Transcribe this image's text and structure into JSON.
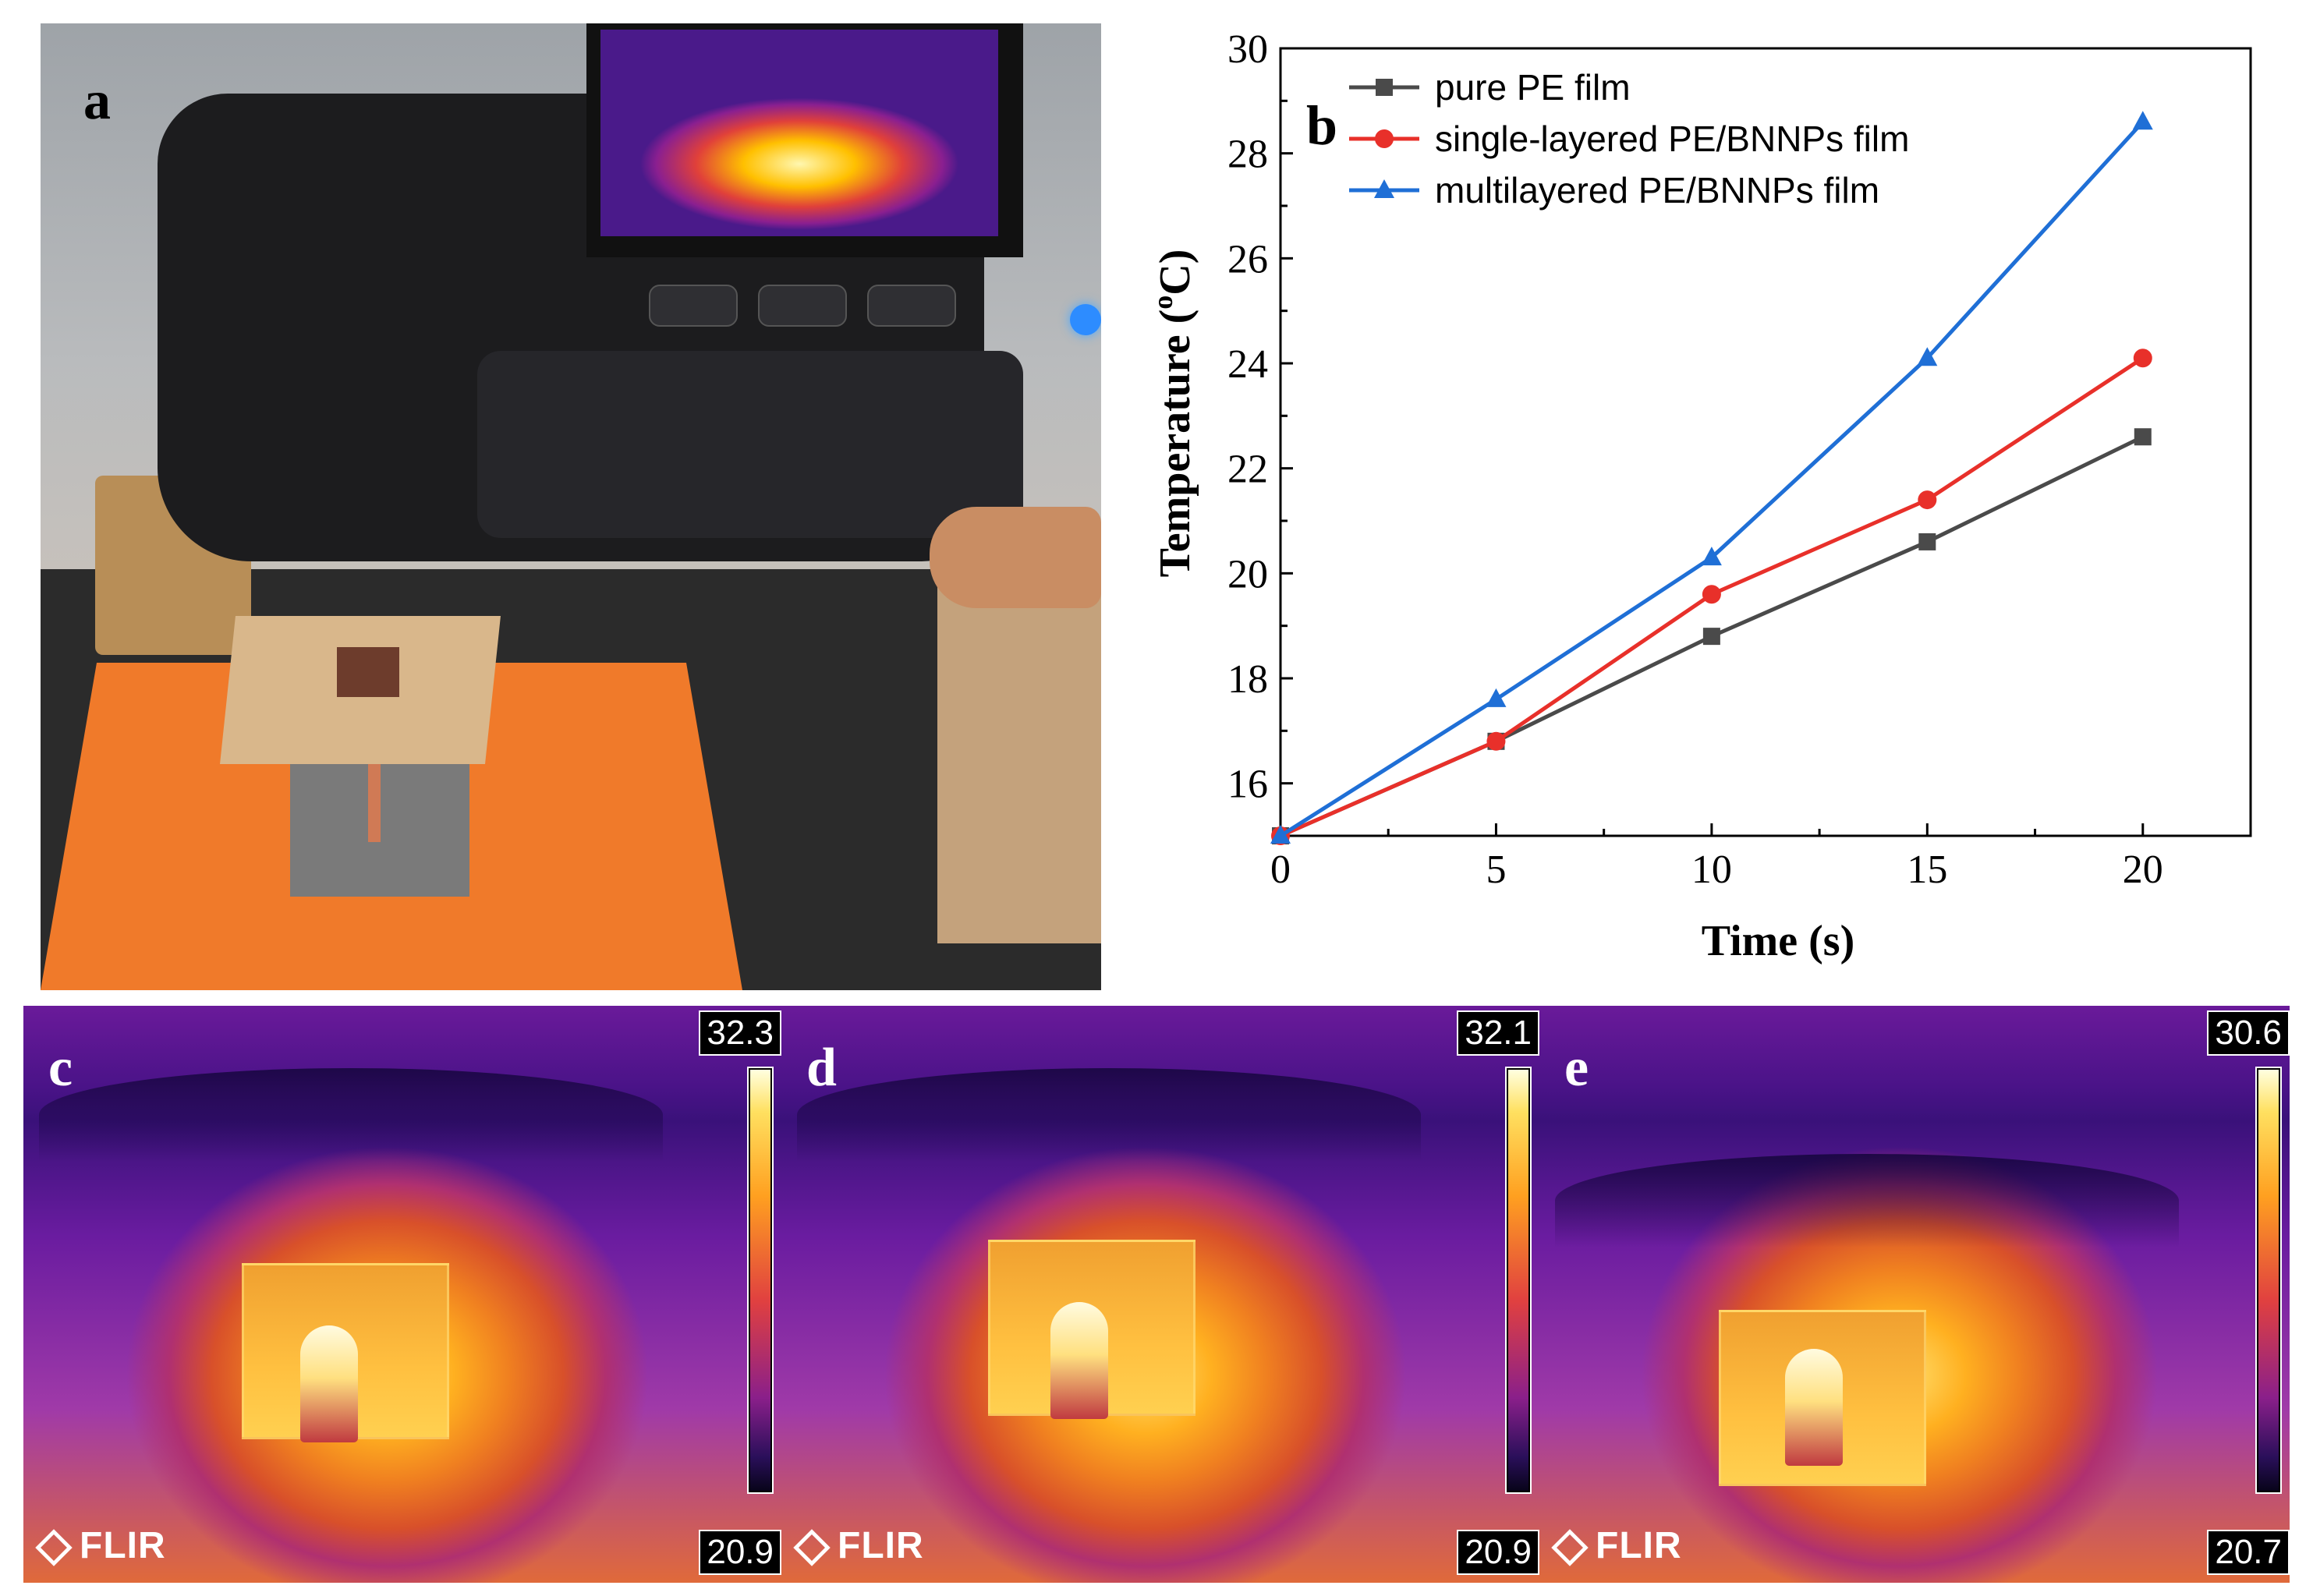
{
  "panels": {
    "a": {
      "letter": "a"
    },
    "b": {
      "letter": "b"
    },
    "c": {
      "letter": "c",
      "max": "32.3",
      "min": "20.9",
      "logo": "FLIR"
    },
    "d": {
      "letter": "d",
      "max": "32.1",
      "min": "20.9",
      "logo": "FLIR"
    },
    "e": {
      "letter": "e",
      "max": "30.6",
      "min": "20.7",
      "logo": "FLIR"
    }
  },
  "chart_data": {
    "type": "line",
    "x": [
      0,
      5,
      10,
      15,
      20
    ],
    "xlabel": "Time (s)",
    "ylabel": "Temperature (°C)",
    "ylabel_main": "Temperature (",
    "ylabel_sup": "o",
    "ylabel_tail": "C)",
    "xlim": [
      0,
      22.5
    ],
    "ylim": [
      15,
      30
    ],
    "xticks": [
      0,
      5,
      10,
      15,
      20
    ],
    "yticks": [
      16,
      18,
      20,
      22,
      24,
      26,
      28,
      30
    ],
    "legend_position": "top-left",
    "series": [
      {
        "name": "pure PE film",
        "color": "#4a4a4a",
        "marker": "square",
        "values": [
          15.0,
          16.8,
          18.8,
          20.6,
          22.6
        ]
      },
      {
        "name": "single-layered PE/BNNPs film",
        "color": "#e8302a",
        "marker": "circle",
        "values": [
          15.0,
          16.8,
          19.6,
          21.4,
          24.1
        ]
      },
      {
        "name": "multilayered PE/BNNPs film",
        "color": "#1f6fd6",
        "marker": "triangle",
        "values": [
          15.0,
          17.6,
          20.3,
          24.1,
          28.6
        ]
      }
    ]
  }
}
